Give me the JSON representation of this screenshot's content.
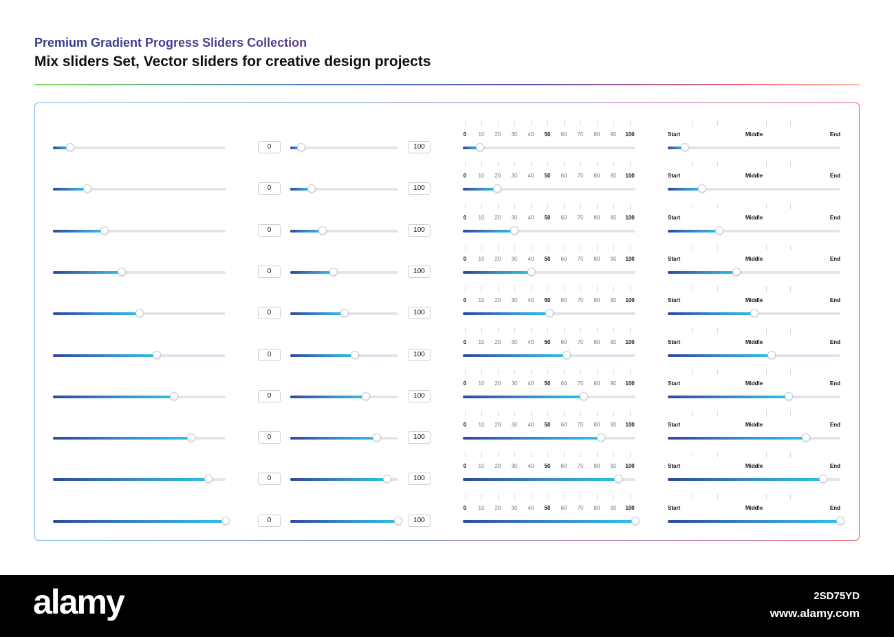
{
  "header": {
    "title": "Premium Gradient Progress Sliders Collection",
    "subtitle": "Mix sliders Set, Vector sliders for creative design projects"
  },
  "colors": {
    "gradient_start": "#2e4a9d",
    "gradient_end": "#2bc2e7",
    "track": "#e1e4ec",
    "title_gradient": [
      "#2d3a8c",
      "#5b3f8f"
    ]
  },
  "range_input": {
    "min_label": "0",
    "max_label": "100"
  },
  "scale": {
    "ticks": [
      "0",
      "10",
      "20",
      "30",
      "40",
      "50",
      "60",
      "70",
      "80",
      "90",
      "100"
    ],
    "bold_ticks": [
      "0",
      "50",
      "100"
    ]
  },
  "labeled_scale": {
    "start": "Start",
    "middle": "Middle",
    "end": "End"
  },
  "sliders": [
    {
      "level": 0.1
    },
    {
      "level": 0.2
    },
    {
      "level": 0.3
    },
    {
      "level": 0.4
    },
    {
      "level": 0.5
    },
    {
      "level": 0.6
    },
    {
      "level": 0.7
    },
    {
      "level": 0.8
    },
    {
      "level": 0.9
    },
    {
      "level": 1.0
    }
  ],
  "footer": {
    "logo": "alamy",
    "image_id": "2SD75YD",
    "url": "www.alamy.com"
  }
}
